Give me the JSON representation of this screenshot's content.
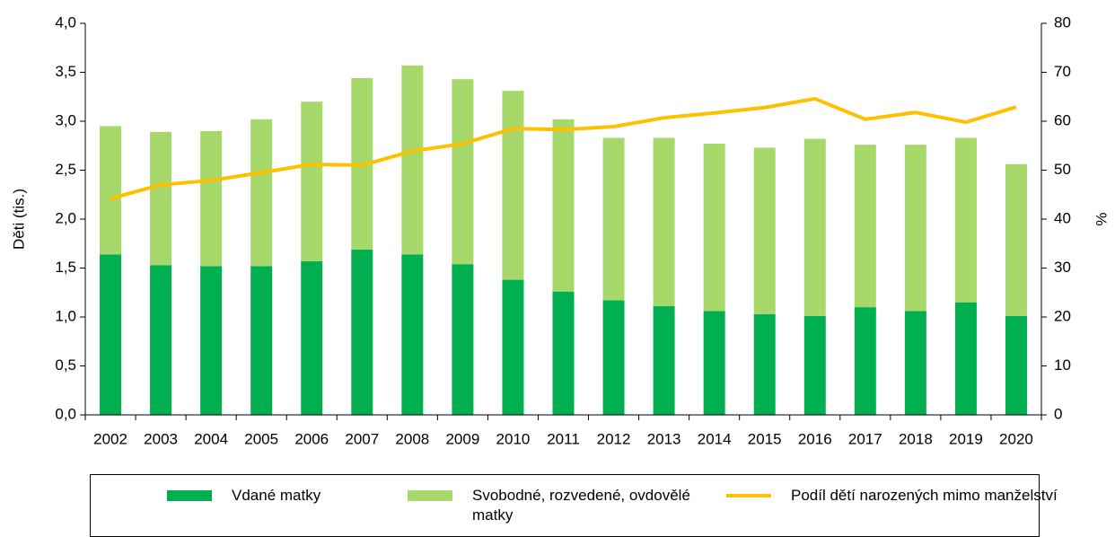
{
  "chart_data": {
    "type": "bar",
    "stacked": true,
    "categories": [
      "2002",
      "2003",
      "2004",
      "2005",
      "2006",
      "2007",
      "2008",
      "2009",
      "2010",
      "2011",
      "2012",
      "2013",
      "2014",
      "2015",
      "2016",
      "2017",
      "2018",
      "2019",
      "2020"
    ],
    "series": [
      {
        "name": "Vdané matky",
        "color": "#00b050",
        "type": "bar",
        "values": [
          1.64,
          1.53,
          1.52,
          1.52,
          1.57,
          1.69,
          1.64,
          1.54,
          1.38,
          1.26,
          1.17,
          1.11,
          1.06,
          1.03,
          1.01,
          1.1,
          1.06,
          1.15,
          1.01
        ]
      },
      {
        "name": "Svobodné, rozvedené, ovdovělé matky",
        "color": "#a6d96a",
        "type": "bar",
        "values": [
          1.31,
          1.36,
          1.38,
          1.5,
          1.63,
          1.75,
          1.93,
          1.89,
          1.93,
          1.76,
          1.66,
          1.72,
          1.71,
          1.7,
          1.81,
          1.66,
          1.7,
          1.68,
          1.55
        ]
      },
      {
        "name": "Podíl dětí narozených mimo manželství",
        "color": "#ffc000",
        "type": "line",
        "axis": "y2",
        "values": [
          44.2,
          47.0,
          47.9,
          49.5,
          51.2,
          51.0,
          53.9,
          55.4,
          58.5,
          58.3,
          58.9,
          60.7,
          61.7,
          62.8,
          64.6,
          60.4,
          61.8,
          59.8,
          62.9
        ]
      }
    ],
    "y_label": "Děti (tis.)",
    "y2_label": "%",
    "ylim": [
      0,
      4
    ],
    "yticks": [
      {
        "value": 0,
        "label": "0,0"
      },
      {
        "value": 0.5,
        "label": "0,5"
      },
      {
        "value": 1,
        "label": "1,0"
      },
      {
        "value": 1.5,
        "label": "1,5"
      },
      {
        "value": 2,
        "label": "2,0"
      },
      {
        "value": 2.5,
        "label": "2,5"
      },
      {
        "value": 3,
        "label": "3,0"
      },
      {
        "value": 3.5,
        "label": "3,5"
      },
      {
        "value": 4,
        "label": "4,0"
      }
    ],
    "y2lim": [
      0,
      80
    ],
    "y2ticks": [
      0,
      10,
      20,
      30,
      40,
      50,
      60,
      70,
      80
    ],
    "grid": false,
    "legend": "bottom"
  }
}
